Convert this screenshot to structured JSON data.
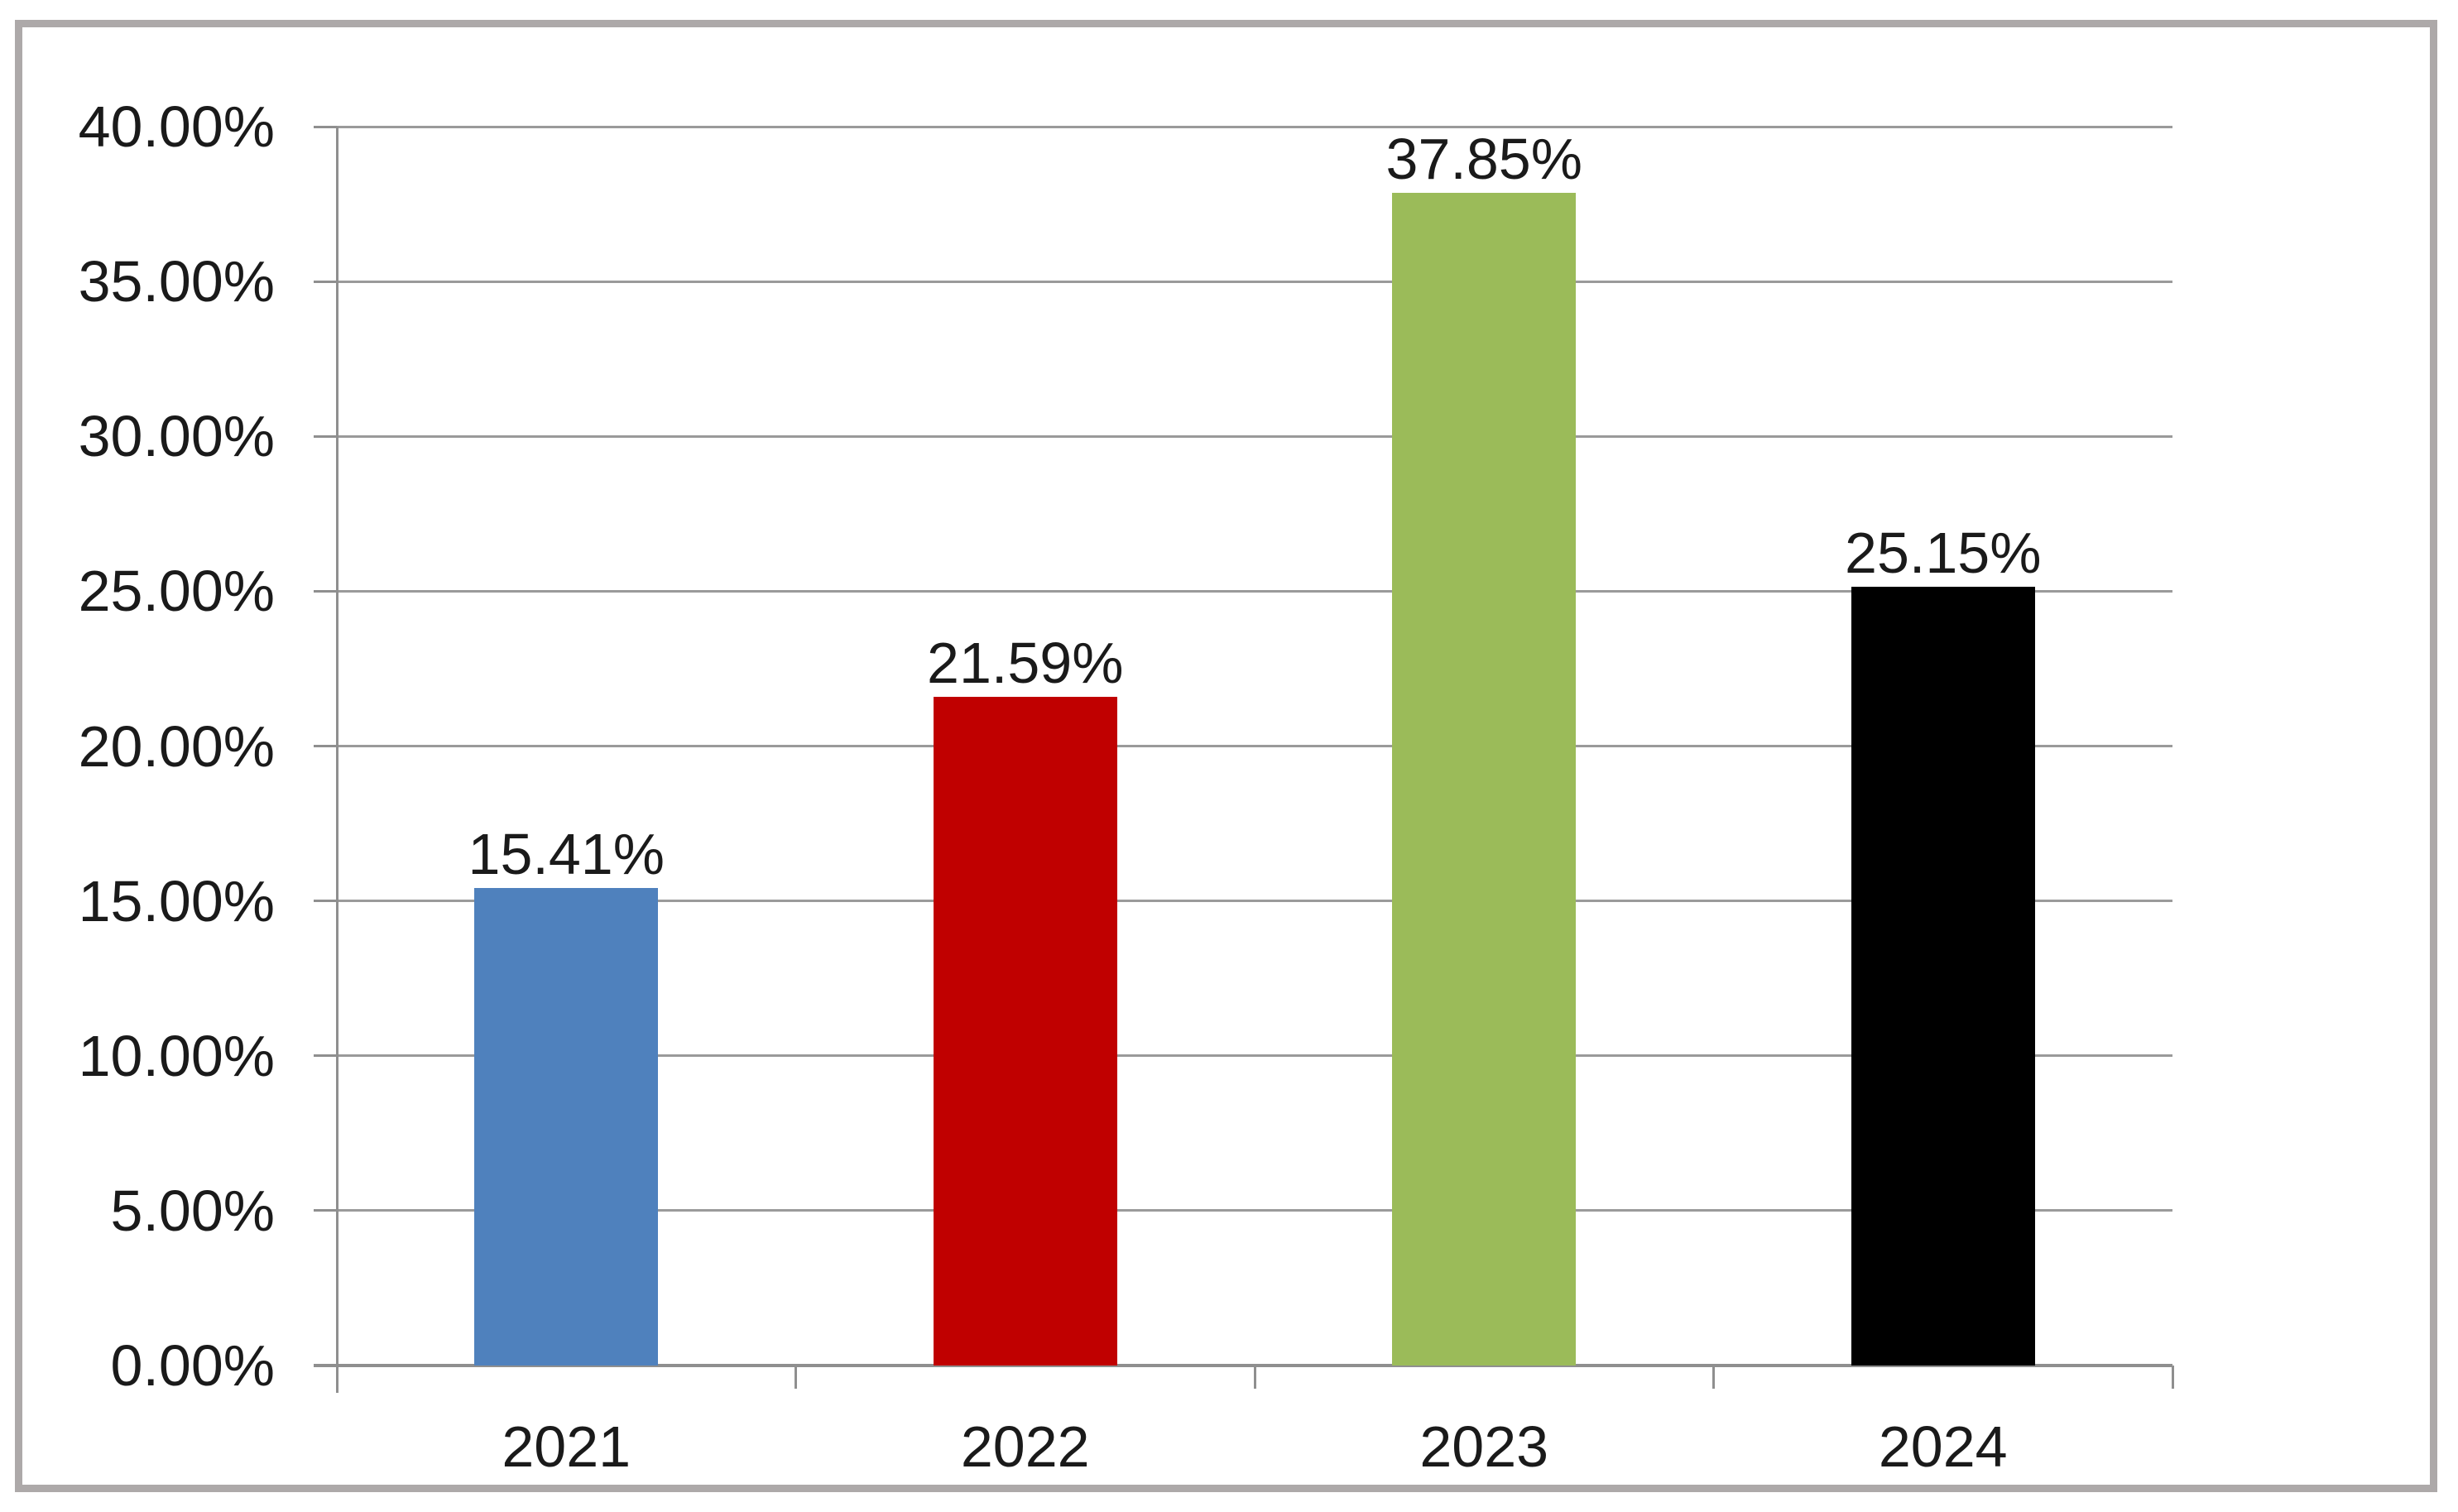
{
  "chart_data": {
    "type": "bar",
    "title": "",
    "xlabel": "",
    "ylabel": "",
    "categories": [
      "2021",
      "2022",
      "2023",
      "2024"
    ],
    "values": [
      15.41,
      21.59,
      37.85,
      25.15
    ],
    "data_labels": [
      "15.41%",
      "21.59%",
      "37.85%",
      "25.15%"
    ],
    "bar_colors": [
      "#4f81bd",
      "#c00000",
      "#9bbb59",
      "#000000"
    ],
    "ylim": [
      0,
      40
    ],
    "ytick_step": 5,
    "ytick_labels": [
      "0.00%",
      "5.00%",
      "10.00%",
      "15.00%",
      "20.00%",
      "25.00%",
      "30.00%",
      "35.00%",
      "40.00%"
    ],
    "grid": true,
    "legend": false
  },
  "styles": {
    "gridline_color": "#9a9a9a",
    "axis_color": "#8f8f8f",
    "frame_border_color": "#ada9a9",
    "text_color": "#1a1a1a",
    "background_color": "#ffffff"
  }
}
